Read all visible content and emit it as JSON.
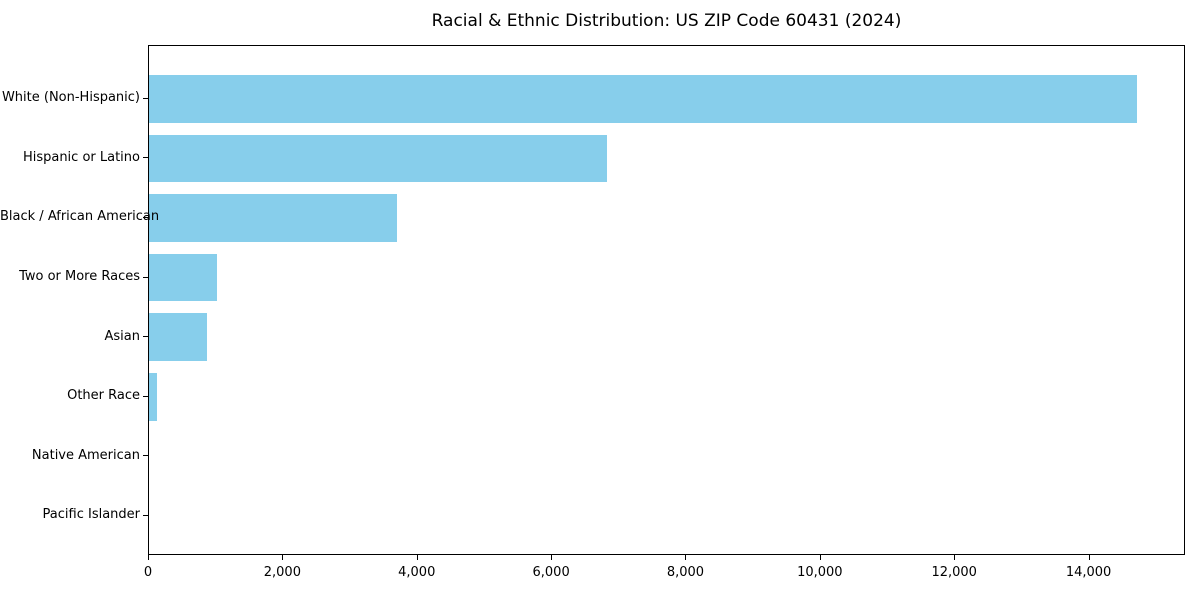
{
  "title": "Racial & Ethnic Distribution: US ZIP Code 60431 (2024)",
  "chart_data": {
    "type": "bar",
    "orientation": "horizontal",
    "title": "Racial & Ethnic Distribution: US ZIP Code 60431 (2024)",
    "xlabel": "",
    "ylabel": "",
    "categories": [
      "White (Non-Hispanic)",
      "Hispanic or Latino",
      "Black / African American",
      "Two or More Races",
      "Asian",
      "Other Race",
      "Native American",
      "Pacific Islander"
    ],
    "values": [
      14700,
      6820,
      3690,
      1010,
      860,
      120,
      0,
      0
    ],
    "xlim": [
      0,
      15435
    ],
    "xticks": [
      {
        "value": 0,
        "label": "0"
      },
      {
        "value": 2000,
        "label": "2,000"
      },
      {
        "value": 4000,
        "label": "4,000"
      },
      {
        "value": 6000,
        "label": "6,000"
      },
      {
        "value": 8000,
        "label": "8,000"
      },
      {
        "value": 10000,
        "label": "10,000"
      },
      {
        "value": 12000,
        "label": "12,000"
      },
      {
        "value": 14000,
        "label": "14,000"
      }
    ],
    "grid": false,
    "legend": "none",
    "colors": {
      "bar": "#87CEEB",
      "axis": "#000000",
      "text": "#000000",
      "background": "#ffffff"
    }
  }
}
